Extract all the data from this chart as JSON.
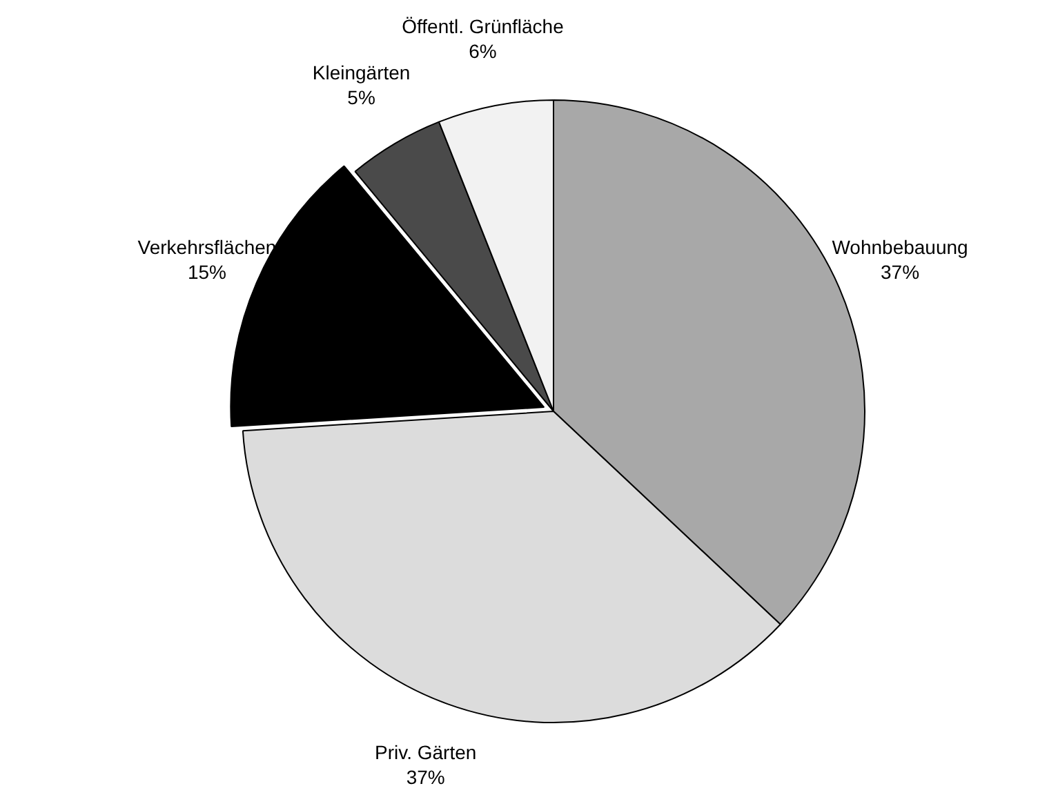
{
  "chart_data": {
    "type": "pie",
    "categories": [
      "Wohnbebauung",
      "Priv. Gärten",
      "Verkehrsflächen",
      "Kleingärten",
      "Öffentl. Grünfläche"
    ],
    "values": [
      37,
      37,
      15,
      5,
      6
    ],
    "value_labels": [
      "37%",
      "37%",
      "15%",
      "5%",
      "6%"
    ],
    "colors": [
      "#a8a8a8",
      "#dcdcdc",
      "#000000",
      "#4a4a4a",
      "#f2f2f2"
    ],
    "legend": false
  }
}
